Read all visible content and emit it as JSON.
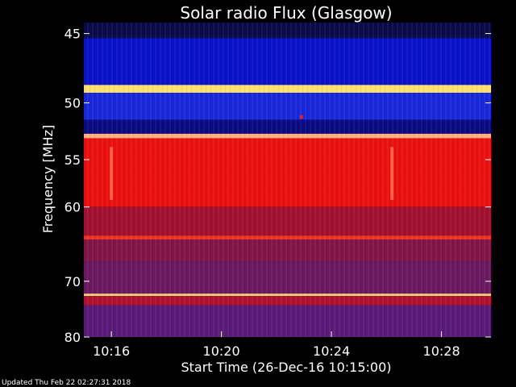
{
  "chart_data": {
    "type": "heatmap",
    "title": "Solar radio Flux (Glasgow)",
    "xlabel": "Start Time (26-Dec-16 10:15:00)",
    "ylabel": "Frequency [MHz]",
    "x_ticks": [
      "10:16",
      "10:20",
      "10:24",
      "10:28"
    ],
    "x_tick_minutes": [
      1,
      5,
      9,
      13
    ],
    "xlim_minutes": [
      0,
      14.8
    ],
    "y_ticks": [
      45,
      50,
      55,
      60,
      70,
      80
    ],
    "ylim": [
      44.3,
      80
    ],
    "y_scale": "reciprocal",
    "bands": [
      {
        "from": 44.3,
        "to": 45.3,
        "color": "#0a0a4a"
      },
      {
        "from": 45.3,
        "to": 48.6,
        "color": "#0a12c8"
      },
      {
        "from": 48.6,
        "to": 49.2,
        "color": "#ffe070"
      },
      {
        "from": 49.2,
        "to": 51.4,
        "color": "#1828d8"
      },
      {
        "from": 51.4,
        "to": 52.6,
        "color": "#0a0a80"
      },
      {
        "from": 52.6,
        "to": 53.0,
        "color": "#ffb080"
      },
      {
        "from": 53.0,
        "to": 60.0,
        "color": "#e81010"
      },
      {
        "from": 60.0,
        "to": 63.5,
        "color": "#a01030"
      },
      {
        "from": 63.5,
        "to": 64.0,
        "color": "#f03020"
      },
      {
        "from": 64.0,
        "to": 67.0,
        "color": "#801548"
      },
      {
        "from": 67.0,
        "to": 72.0,
        "color": "#6a1860"
      },
      {
        "from": 72.0,
        "to": 72.4,
        "color": "#ffd080"
      },
      {
        "from": 72.4,
        "to": 74.0,
        "color": "#b01030"
      },
      {
        "from": 74.0,
        "to": 80.0,
        "color": "#5a1a78"
      }
    ],
    "features": [
      {
        "minute": 1,
        "from": 53.8,
        "to": 59.2,
        "color": "#ff7050"
      },
      {
        "minute": 11.2,
        "from": 53.8,
        "to": 59.2,
        "color": "#ff7050"
      },
      {
        "minute": 7.9,
        "from": 51.0,
        "to": 51.3,
        "color": "#ff2020"
      }
    ],
    "footer": "Updated Thu Feb 22 02:27:31 2018"
  }
}
